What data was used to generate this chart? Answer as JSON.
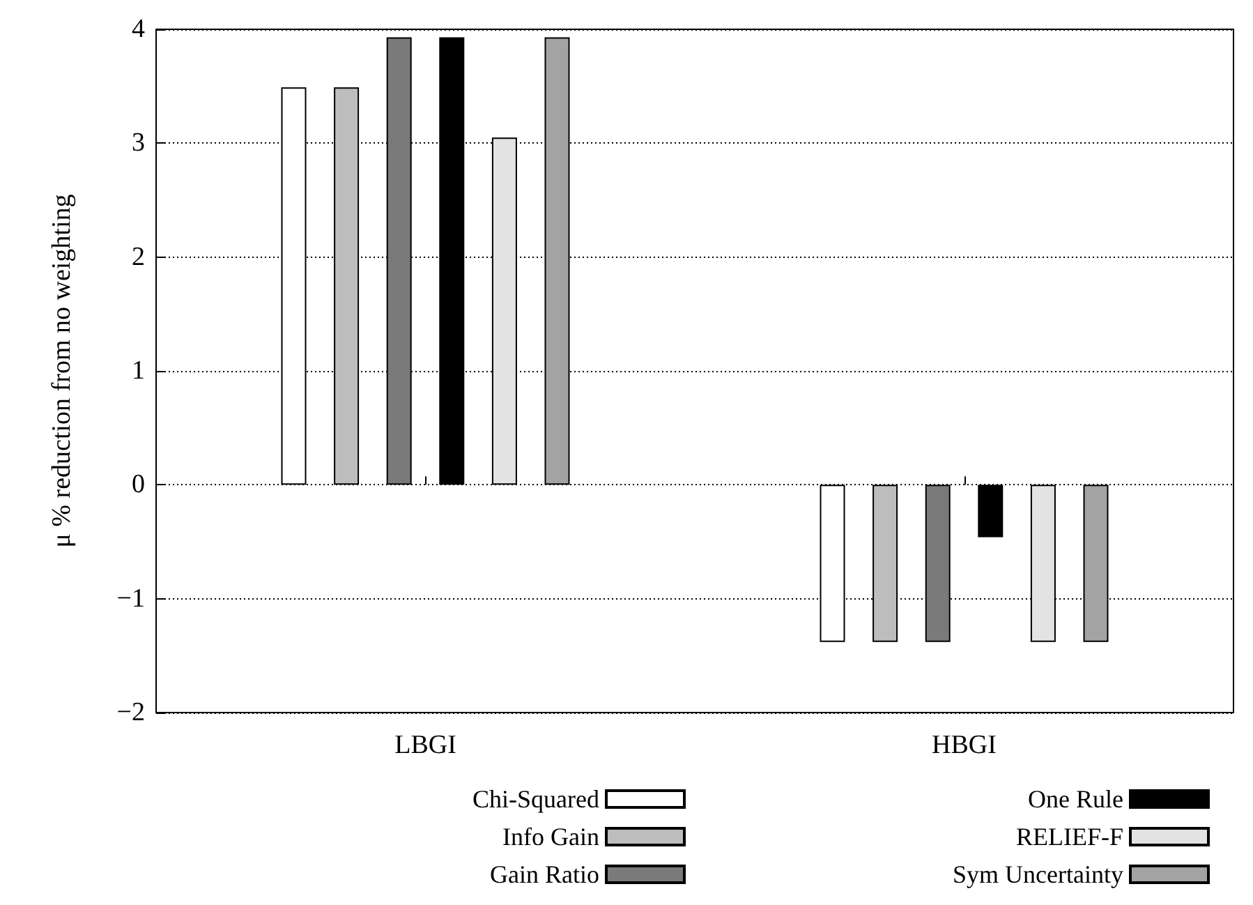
{
  "chart_data": {
    "type": "bar",
    "ylabel": "μ % reduction from no weighting",
    "categories": [
      "LBGI",
      "HBGI"
    ],
    "series": [
      {
        "name": "Chi-Squared",
        "color": "#ffffff",
        "values": [
          3.49,
          -1.38
        ]
      },
      {
        "name": "Info Gain",
        "color": "#bdbdbd",
        "values": [
          3.49,
          -1.38
        ]
      },
      {
        "name": "Gain Ratio",
        "color": "#7a7a7a",
        "values": [
          3.93,
          -1.38
        ]
      },
      {
        "name": "One Rule",
        "color": "#000000",
        "values": [
          3.93,
          -0.46
        ]
      },
      {
        "name": "RELIEF-F",
        "color": "#e3e3e3",
        "values": [
          3.05,
          -1.38
        ]
      },
      {
        "name": "Sym Uncertainty",
        "color": "#a3a3a3",
        "values": [
          3.93,
          -1.38
        ]
      }
    ],
    "ylim": [
      -2,
      4
    ],
    "yticks": [
      {
        "value": -2,
        "label": "−2"
      },
      {
        "value": -1,
        "label": "−1"
      },
      0,
      1,
      2,
      3,
      4
    ],
    "grid": "y",
    "legend": "bottom"
  }
}
